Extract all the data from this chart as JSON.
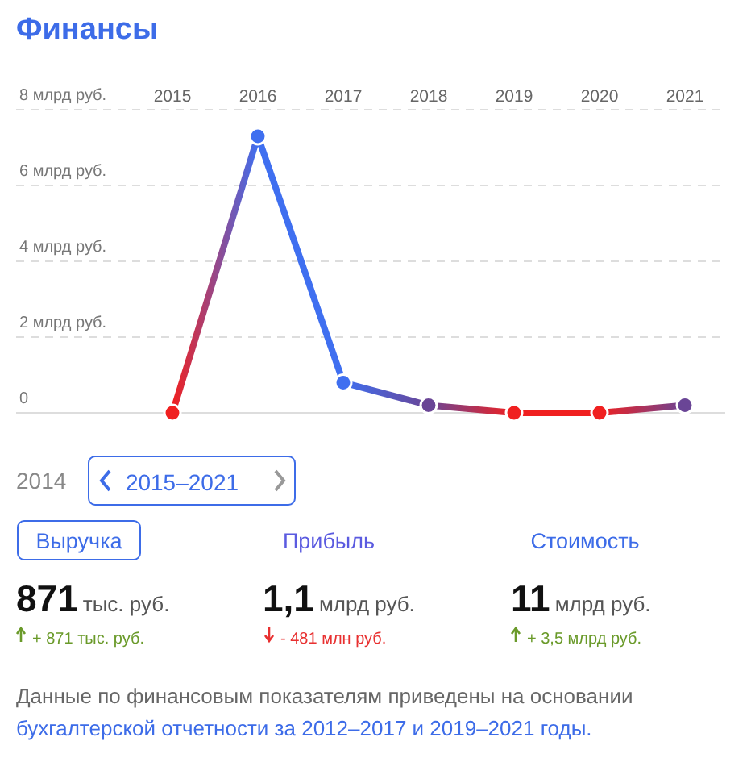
{
  "chart_data": {
    "type": "line",
    "title": "Финансы",
    "categories": [
      "2015",
      "2016",
      "2017",
      "2018",
      "2019",
      "2020",
      "2021"
    ],
    "series": [
      {
        "colors": [
          "#f02020",
          "#3f6ff0",
          "#3f6ff0",
          "#6a4596",
          "#f02020",
          "#f02020",
          "#6a4596"
        ],
        "values": [
          0,
          7.3,
          0.8,
          0.2,
          0,
          0,
          0.2
        ]
      }
    ],
    "ylim": [
      0,
      8
    ],
    "yticks": [
      {
        "value": 0,
        "label": "0"
      },
      {
        "value": 2,
        "label": "2 млрд руб."
      },
      {
        "value": 4,
        "label": "4 млрд руб."
      },
      {
        "value": 6,
        "label": "6 млрд руб."
      },
      {
        "value": 8,
        "label": "8 млрд руб."
      }
    ],
    "grid": "y",
    "marker": "circle",
    "annotations": [
      "2014",
      "2015–2021",
      "Выручка",
      "Прибыль",
      "Стоимость",
      "871",
      "тыс. руб.",
      "1,1",
      "млрд руб.",
      "11",
      "млрд руб.",
      "+ 871 тыс. руб.",
      "- 481 млн руб.",
      "+ 3,5 млрд руб.",
      "Данные по финансовым показателям приведены на основании",
      "бухгалтерской отчетности за 2012–2017 и 2019–2021 годы."
    ]
  }
}
